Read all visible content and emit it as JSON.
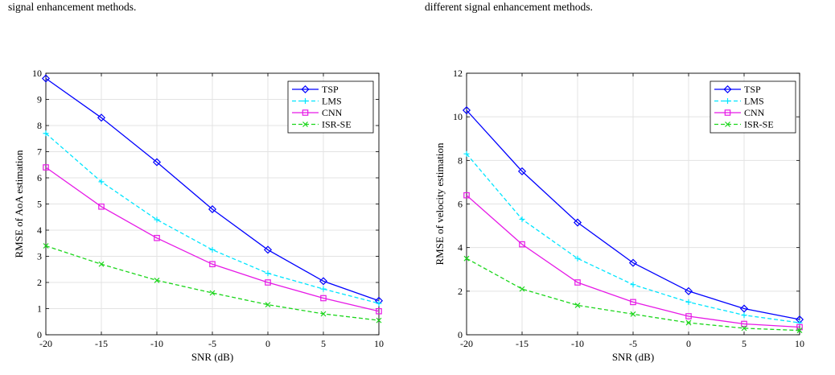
{
  "captions": {
    "left": {
      "line1": "signal enhancement methods."
    },
    "right": {
      "line1": "different signal enhancement methods."
    }
  },
  "chart_data": [
    {
      "type": "line",
      "xlabel": "SNR (dB)",
      "ylabel": "RMSE of AoA estimation",
      "x": [
        -20,
        -15,
        -10,
        -5,
        0,
        5,
        10
      ],
      "xlim": [
        -20,
        10
      ],
      "ylim": [
        0,
        10
      ],
      "xticks": [
        -20,
        -15,
        -10,
        -5,
        0,
        5,
        10
      ],
      "yticks": [
        0,
        1,
        2,
        3,
        4,
        5,
        6,
        7,
        8,
        9,
        10
      ],
      "grid": true,
      "legend_position": "top-right",
      "series": [
        {
          "name": "TSP",
          "color": "#0000ff",
          "dash": "solid",
          "marker": "diamond",
          "values": [
            9.8,
            8.3,
            6.6,
            4.8,
            3.25,
            2.05,
            1.3
          ]
        },
        {
          "name": "LMS",
          "color": "#00e5ff",
          "dash": "dashed",
          "marker": "plus",
          "values": [
            7.7,
            5.85,
            4.4,
            3.25,
            2.35,
            1.75,
            1.2
          ]
        },
        {
          "name": "CNN",
          "color": "#e619e6",
          "dash": "solid",
          "marker": "square",
          "values": [
            6.4,
            4.9,
            3.7,
            2.7,
            2.0,
            1.4,
            0.9
          ]
        },
        {
          "name": "ISR-SE",
          "color": "#1bd61b",
          "dash": "dashed",
          "marker": "x",
          "values": [
            3.4,
            2.7,
            2.08,
            1.6,
            1.15,
            0.8,
            0.55
          ]
        }
      ]
    },
    {
      "type": "line",
      "xlabel": "SNR (dB)",
      "ylabel": "RMSE of velocity estimation",
      "x": [
        -20,
        -15,
        -10,
        -5,
        0,
        5,
        10
      ],
      "xlim": [
        -20,
        10
      ],
      "ylim": [
        0,
        12
      ],
      "xticks": [
        -20,
        -15,
        -10,
        -5,
        0,
        5,
        10
      ],
      "yticks": [
        0,
        2,
        4,
        6,
        8,
        10,
        12
      ],
      "grid": true,
      "legend_position": "top-right",
      "series": [
        {
          "name": "TSP",
          "color": "#0000ff",
          "dash": "solid",
          "marker": "diamond",
          "values": [
            10.3,
            7.5,
            5.15,
            3.3,
            2.0,
            1.2,
            0.7
          ]
        },
        {
          "name": "LMS",
          "color": "#00e5ff",
          "dash": "dashed",
          "marker": "plus",
          "values": [
            8.3,
            5.3,
            3.5,
            2.3,
            1.5,
            0.9,
            0.55
          ]
        },
        {
          "name": "CNN",
          "color": "#e619e6",
          "dash": "solid",
          "marker": "square",
          "values": [
            6.4,
            4.15,
            2.4,
            1.5,
            0.85,
            0.5,
            0.35
          ]
        },
        {
          "name": "ISR-SE",
          "color": "#1bd61b",
          "dash": "dashed",
          "marker": "x",
          "values": [
            3.5,
            2.1,
            1.35,
            0.95,
            0.55,
            0.3,
            0.2
          ]
        }
      ]
    }
  ]
}
